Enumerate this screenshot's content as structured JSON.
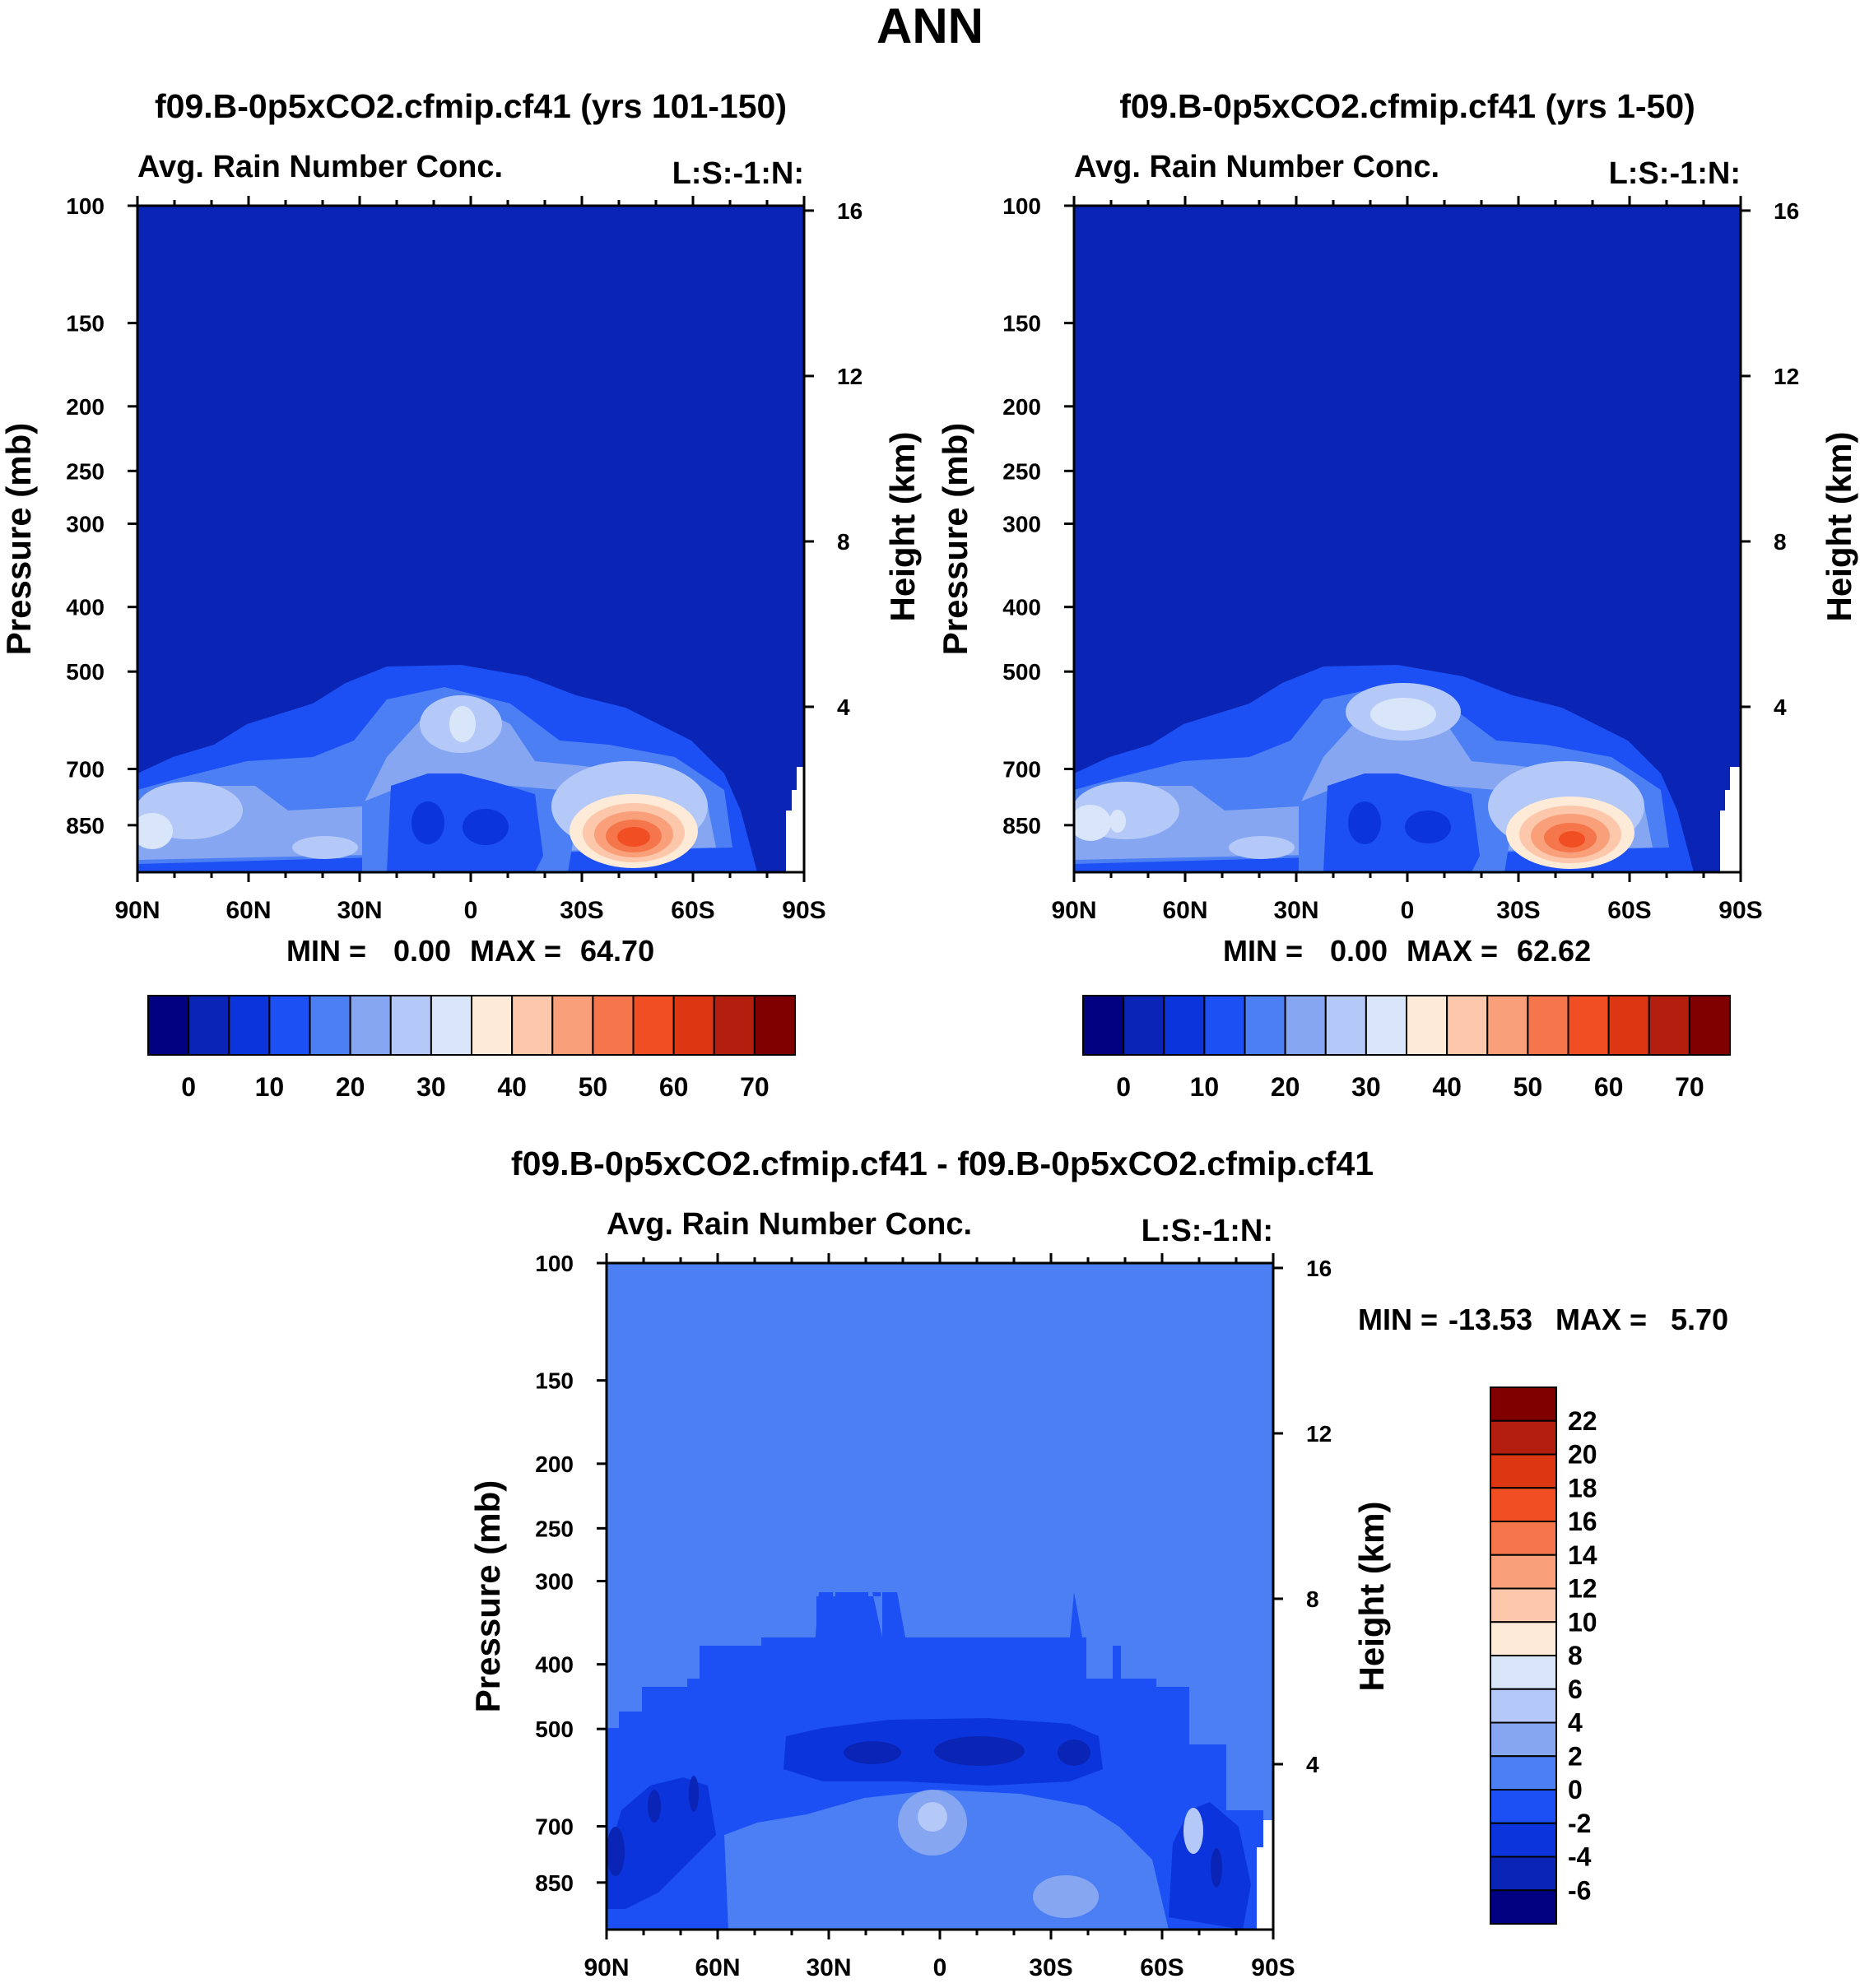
{
  "figure_title": "ANN",
  "colors": {
    "abs_levels": [
      "#000080",
      "#0a25b5",
      "#0b34dc",
      "#1c4ff4",
      "#4c7ff4",
      "#86a6f2",
      "#b4c9f8",
      "#d9e6fa",
      "#fdebd8",
      "#fcc7aa",
      "#f9a07b",
      "#f5764b",
      "#f24e24",
      "#dc3612",
      "#b41e0e",
      "#800000"
    ],
    "diff_levels": [
      "#000080",
      "#0a25b5",
      "#0b34dc",
      "#1c4ff4",
      "#4c7ff4",
      "#86a6f2",
      "#b4c9f8",
      "#d9e6fa",
      "#fdebd8",
      "#fcc7aa",
      "#f9a07b",
      "#f5764b",
      "#f24e24",
      "#dc3612",
      "#b41e0e",
      "#800000"
    ]
  },
  "chart_data": [
    {
      "type": "heatmap",
      "title": "f09.B-0p5xCO2.cfmip.cf41 (yrs 101-150)",
      "left_string": "Avg. Rain Number Conc.",
      "right_string": "L:S:-1:N:",
      "ylabel": "Pressure (mb)",
      "ylabel_right": "Height (km)",
      "x_ticks": [
        "90N",
        "60N",
        "30N",
        "0",
        "30S",
        "60S",
        "90S"
      ],
      "y_ticks": [
        "100",
        "150",
        "200",
        "250",
        "300",
        "400",
        "500",
        "700",
        "850"
      ],
      "y_ticks_right": [
        "16",
        "12",
        "8",
        "4"
      ],
      "min_label": "MIN =",
      "min_value": "0.00",
      "max_label": "MAX =",
      "max_value": "64.70",
      "colorbar_labels": [
        "0",
        "10",
        "20",
        "30",
        "40",
        "50",
        "60",
        "70"
      ],
      "background_level": 1,
      "blobs": [
        {
          "lat": -40,
          "p": 820,
          "level": 13
        },
        {
          "lat": 0,
          "p": 580,
          "level": 6
        },
        {
          "lat": -30,
          "p": 720,
          "level": 6
        },
        {
          "lat": 80,
          "p": 820,
          "level": 7
        },
        {
          "lat": 45,
          "p": 830,
          "level": 6
        }
      ]
    },
    {
      "type": "heatmap",
      "title": "f09.B-0p5xCO2.cfmip.cf41 (yrs 1-50)",
      "left_string": "Avg. Rain Number Conc.",
      "right_string": "L:S:-1:N:",
      "ylabel": "Pressure (mb)",
      "ylabel_right": "Height (km)",
      "x_ticks": [
        "90N",
        "60N",
        "30N",
        "0",
        "30S",
        "60S",
        "90S"
      ],
      "y_ticks": [
        "100",
        "150",
        "200",
        "250",
        "300",
        "400",
        "500",
        "700",
        "850"
      ],
      "y_ticks_right": [
        "16",
        "12",
        "8",
        "4"
      ],
      "min_label": "MIN =",
      "min_value": "0.00",
      "max_label": "MAX =",
      "max_value": "62.62",
      "colorbar_labels": [
        "0",
        "10",
        "20",
        "30",
        "40",
        "50",
        "60",
        "70"
      ],
      "background_level": 1,
      "blobs": [
        {
          "lat": -45,
          "p": 830,
          "level": 13
        },
        {
          "lat": 0,
          "p": 560,
          "level": 7
        },
        {
          "lat": -30,
          "p": 720,
          "level": 6
        },
        {
          "lat": 80,
          "p": 820,
          "level": 7
        },
        {
          "lat": 45,
          "p": 830,
          "level": 6
        }
      ]
    },
    {
      "type": "heatmap",
      "title": "f09.B-0p5xCO2.cfmip.cf41 - f09.B-0p5xCO2.cfmip.cf41",
      "left_string": "Avg. Rain Number Conc.",
      "right_string": "L:S:-1:N:",
      "ylabel": "Pressure (mb)",
      "ylabel_right": "Height (km)",
      "x_ticks": [
        "90N",
        "60N",
        "30N",
        "0",
        "30S",
        "60S",
        "90S"
      ],
      "y_ticks": [
        "100",
        "150",
        "200",
        "250",
        "300",
        "400",
        "500",
        "700",
        "850"
      ],
      "y_ticks_right": [
        "16",
        "12",
        "8",
        "4"
      ],
      "min_label": "MIN = ",
      "min_value": "-13.53",
      "max_label": "MAX =",
      "max_value": "5.70",
      "colorbar_labels": [
        "22",
        "20",
        "18",
        "16",
        "14",
        "12",
        "10",
        "8",
        "6",
        "4",
        "2",
        "0",
        "-2",
        "-4",
        "-6"
      ],
      "background_level": 4,
      "blobs": [
        {
          "lat": 0,
          "p": 520,
          "level": 1
        },
        {
          "lat": 0,
          "p": 700,
          "level": 6
        },
        {
          "lat": -30,
          "p": 820,
          "level": 5
        },
        {
          "lat": 75,
          "p": 650,
          "level": 2
        },
        {
          "lat": -70,
          "p": 700,
          "level": 2
        }
      ]
    }
  ]
}
